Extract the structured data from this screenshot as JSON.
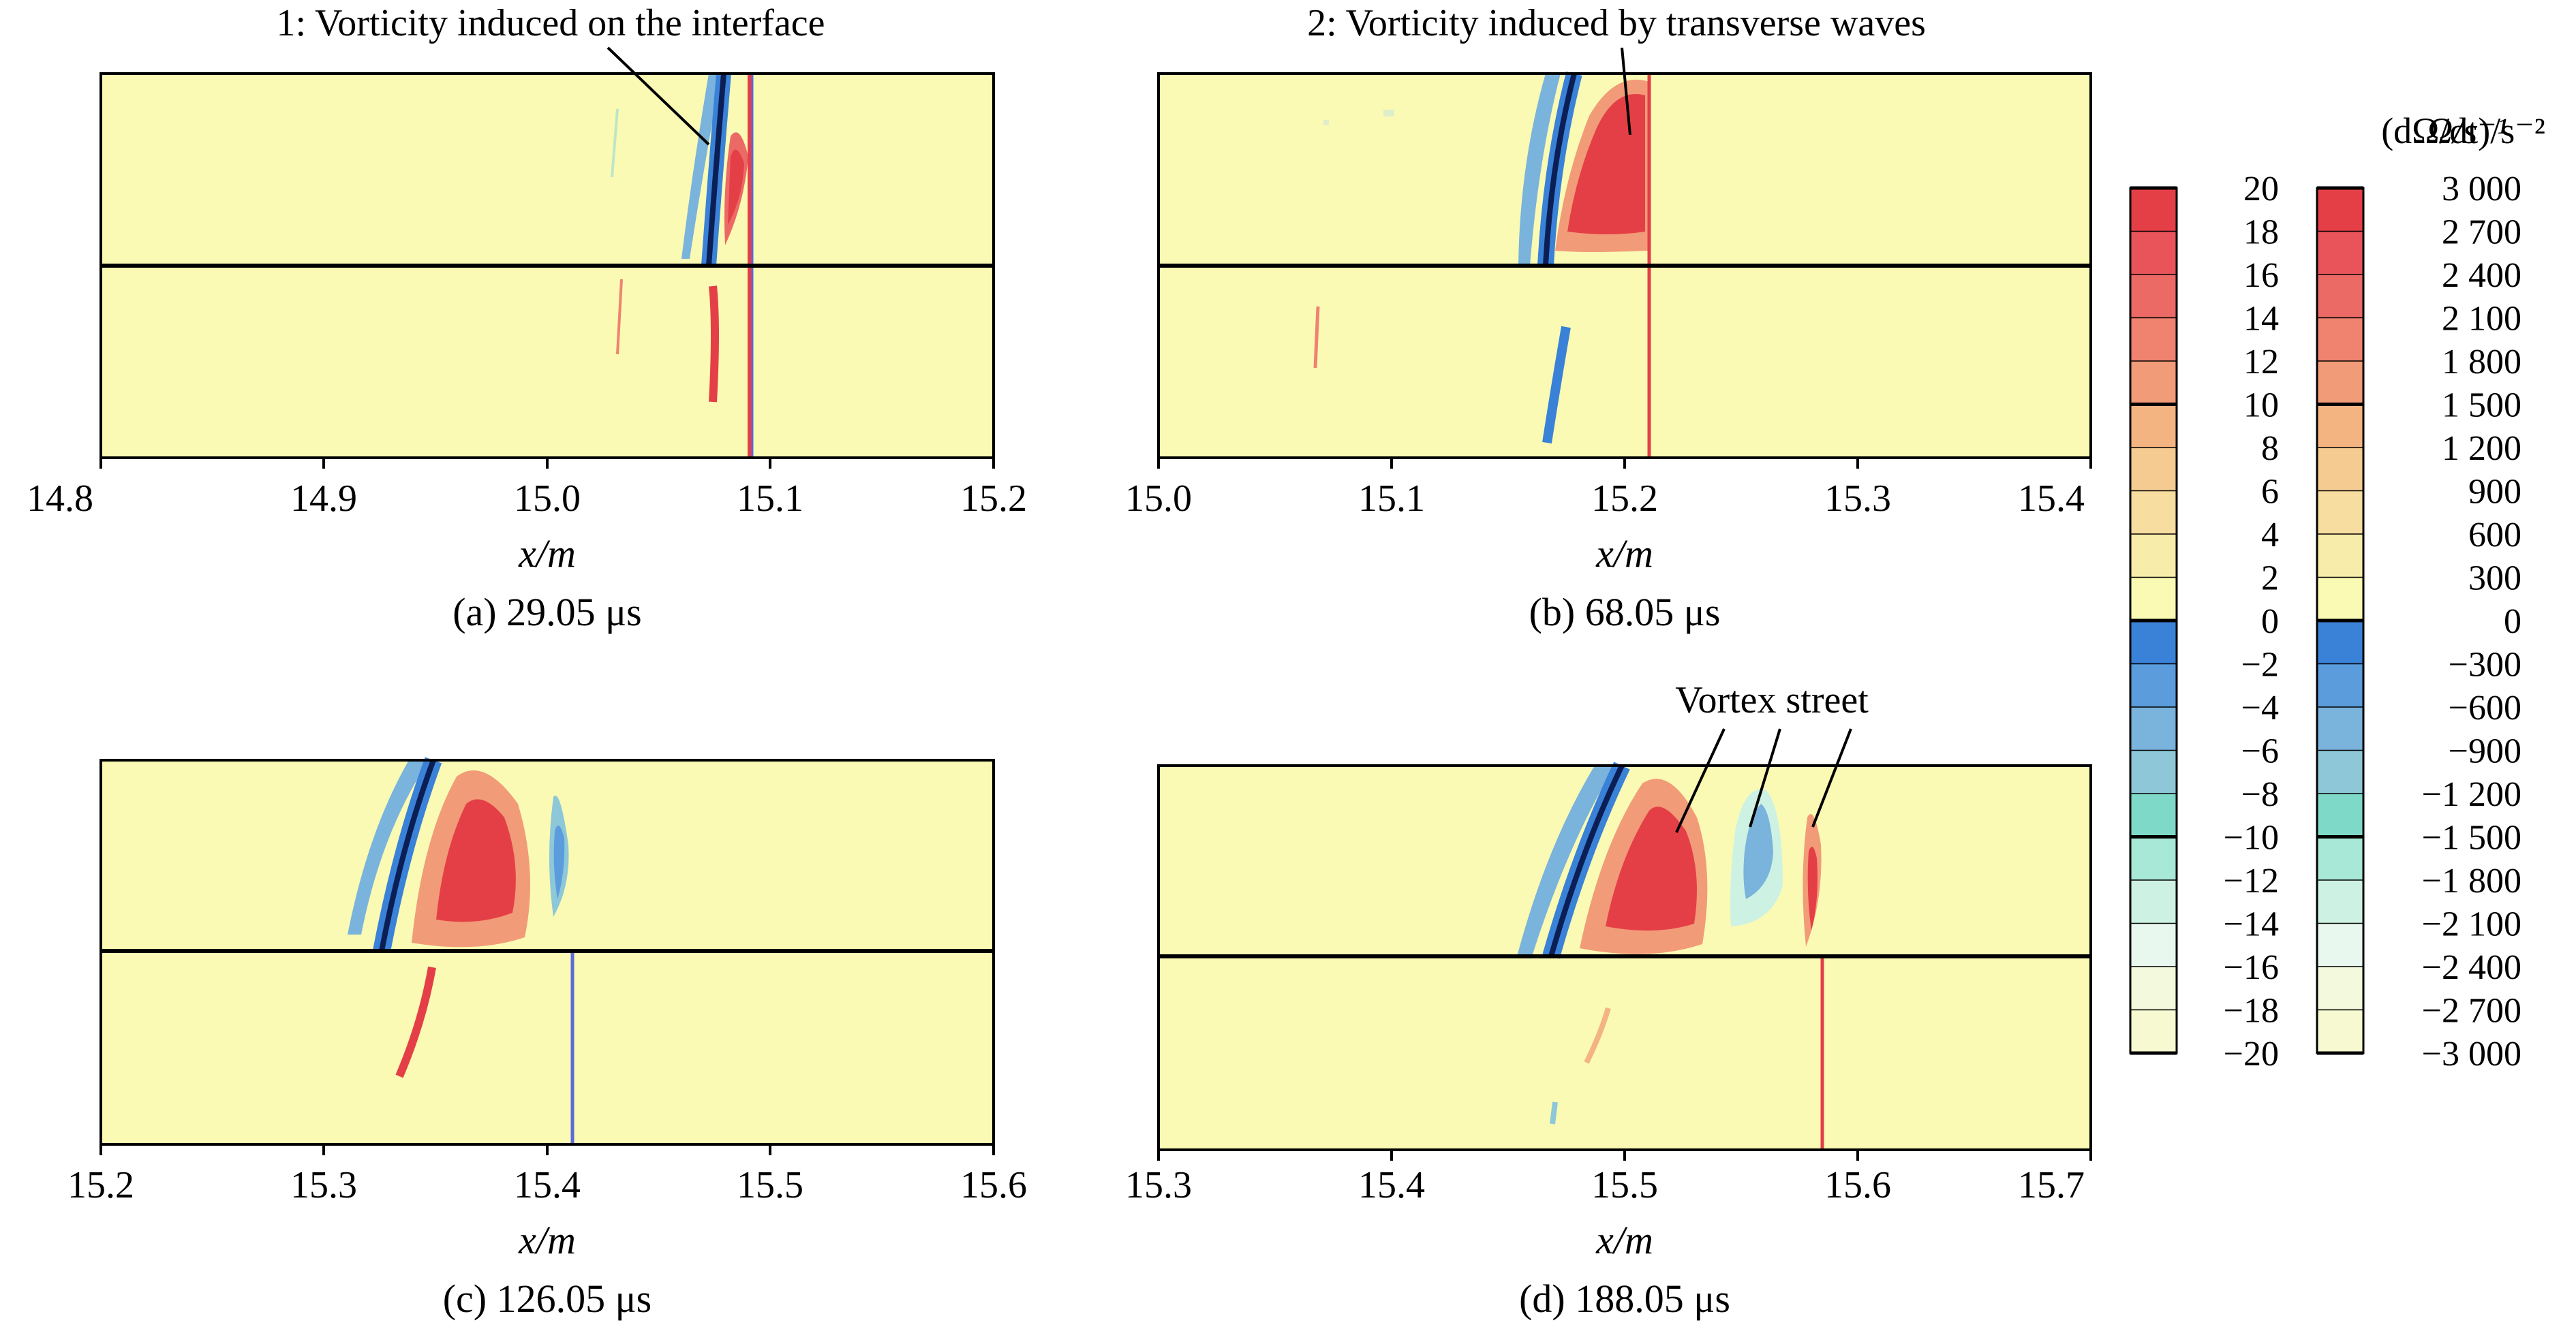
{
  "chart_data": {
    "type": "heatmap",
    "field_color": "#fafab4",
    "colors": {
      "negative": [
        "#3a82d8",
        "#5b9ddc",
        "#7ab3dc",
        "#8ec7d8",
        "#7fd9c8",
        "#a8e8d6",
        "#cdf2e4",
        "#e8f8ee",
        "#f2f9dc",
        "#f7fad0"
      ],
      "positive": [
        "#fafab4",
        "#f8ecaa",
        "#f8dda0",
        "#f6cb92",
        "#f4b482",
        "#f29b78",
        "#f08270",
        "#ec6a66",
        "#e8545a",
        "#e43f46"
      ]
    },
    "colorbars": [
      {
        "title": "Ω/s⁻¹",
        "ticks": [
          "20",
          "18",
          "16",
          "14",
          "12",
          "10",
          "8",
          "6",
          "4",
          "2",
          "0",
          "−2",
          "−4",
          "−6",
          "−8",
          "−10",
          "−12",
          "−14",
          "−16",
          "−18",
          "−20"
        ]
      },
      {
        "title": "(dΩ/dt)/s⁻²",
        "ticks": [
          "3 000",
          "2 700",
          "2 400",
          "2 100",
          "1 800",
          "1 500",
          "1 200",
          "900",
          "600",
          "300",
          "0",
          "−300",
          "−600",
          "−900",
          "−1 200",
          "−1 500",
          "−1 800",
          "−2 100",
          "−2 400",
          "−2 700",
          "−3 000"
        ]
      }
    ],
    "panels": [
      {
        "caption": "(a) 29.05 μs",
        "xlabel": "x/m",
        "xlim": [
          14.8,
          15.2
        ],
        "xticks": [
          "14.8",
          "14.9",
          "15.0",
          "15.1",
          "15.2"
        ],
        "annotation": "1: Vorticity induced on the interface"
      },
      {
        "caption": "(b) 68.05 μs",
        "xlabel": "x/m",
        "xlim": [
          15.0,
          15.4
        ],
        "xticks": [
          "15.0",
          "15.1",
          "15.2",
          "15.3",
          "15.4"
        ],
        "annotation": "2: Vorticity induced by transverse waves"
      },
      {
        "caption": "(c) 126.05 μs",
        "xlabel": "x/m",
        "xlim": [
          15.2,
          15.6
        ],
        "xticks": [
          "15.2",
          "15.3",
          "15.4",
          "15.5",
          "15.6"
        ],
        "annotation": ""
      },
      {
        "caption": "(d) 188.05 μs",
        "xlabel": "x/m",
        "xlim": [
          15.3,
          15.7
        ],
        "xticks": [
          "15.3",
          "15.4",
          "15.5",
          "15.6",
          "15.7"
        ],
        "annotation": "Vortex street"
      }
    ]
  }
}
